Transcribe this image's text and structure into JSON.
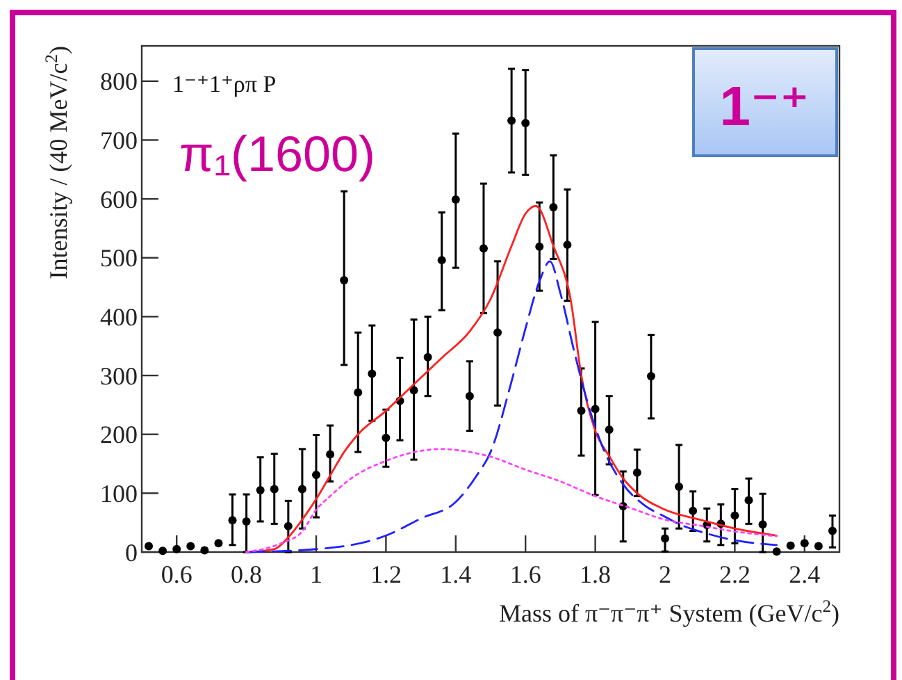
{
  "chart_data": {
    "type": "scatter",
    "xlabel": "Mass of π⁻π⁻π⁺ System (GeV/c$^{2}$)",
    "ylabel": "Intensity / (40 MeV/c$^{2}$)",
    "annotations": [
      "1⁻⁺1⁺ρπ P",
      "π₁(1600)",
      "1⁻⁺"
    ],
    "xlim": [
      0.5,
      2.5
    ],
    "xticks": [
      0.6,
      0.8,
      1,
      1.2,
      1.4,
      1.6,
      1.8,
      2,
      2.2,
      2.4
    ],
    "ylim": [
      0,
      860
    ],
    "yticks": [
      0,
      100,
      200,
      300,
      400,
      500,
      600,
      700,
      800
    ],
    "grid": false,
    "series": [
      {
        "color": "#000000",
        "marker": "circle",
        "x": [
          0.52,
          0.56,
          0.6,
          0.64,
          0.68,
          0.72,
          0.76,
          0.8,
          0.84,
          0.88,
          0.92,
          0.96,
          1.0,
          1.04,
          1.08,
          1.12,
          1.16,
          1.2,
          1.24,
          1.28,
          1.32,
          1.36,
          1.4,
          1.44,
          1.48,
          1.52,
          1.56,
          1.6,
          1.64,
          1.68,
          1.72,
          1.76,
          1.8,
          1.84,
          1.88,
          1.92,
          1.96,
          2.0,
          2.04,
          2.08,
          2.12,
          2.16,
          2.2,
          2.24,
          2.28,
          2.32,
          2.36,
          2.4,
          2.44,
          2.48
        ],
        "values": [
          10,
          2,
          5,
          10,
          3,
          15,
          54,
          52,
          105,
          107,
          44,
          107,
          131,
          166,
          462,
          271,
          303,
          194,
          257,
          275,
          331,
          496,
          599,
          265,
          516,
          373,
          733,
          729,
          519,
          586,
          522,
          240,
          243,
          208,
          78,
          135,
          299,
          23,
          111,
          70,
          46,
          48,
          62,
          88,
          47,
          1,
          11,
          15,
          10,
          36
        ],
        "errors": [
          null,
          null,
          null,
          null,
          null,
          null,
          [
            12,
            98
          ],
          [
            0,
            98
          ],
          [
            52,
            161
          ],
          [
            48,
            167
          ],
          [
            0,
            87
          ],
          [
            40,
            175
          ],
          [
            59,
            199
          ],
          [
            120,
            215
          ],
          [
            318,
            613
          ],
          [
            170,
            373
          ],
          [
            223,
            385
          ],
          [
            145,
            242
          ],
          [
            190,
            330
          ],
          [
            157,
            395
          ],
          [
            265,
            400
          ],
          [
            411,
            577
          ],
          [
            483,
            711
          ],
          [
            206,
            324
          ],
          [
            406,
            626
          ],
          [
            249,
            494
          ],
          [
            645,
            821
          ],
          [
            641,
            819
          ],
          [
            444,
            594
          ],
          [
            498,
            674
          ],
          [
            427,
            616
          ],
          [
            164,
            312
          ],
          [
            97,
            391
          ],
          [
            149,
            265
          ],
          [
            18,
            137
          ],
          [
            95,
            174
          ],
          [
            227,
            369
          ],
          [
            1,
            40
          ],
          [
            40,
            182
          ],
          [
            36,
            103
          ],
          [
            18,
            74
          ],
          [
            12,
            81
          ],
          [
            15,
            107
          ],
          [
            48,
            125
          ],
          [
            0,
            99
          ],
          null,
          null,
          null,
          null,
          [
            8,
            62
          ]
        ]
      },
      {
        "type": "line",
        "color": "#ff2020",
        "line_style": "solid",
        "x": [
          0.8,
          0.88,
          0.92,
          0.96,
          1.0,
          1.04,
          1.08,
          1.12,
          1.2,
          1.28,
          1.36,
          1.44,
          1.5,
          1.56,
          1.6,
          1.63,
          1.68,
          1.73,
          1.76,
          1.8,
          1.84,
          1.88,
          1.92,
          2.0,
          2.1,
          2.2,
          2.32
        ],
        "values": [
          0,
          5,
          25,
          55,
          90,
          130,
          170,
          200,
          240,
          285,
          330,
          375,
          430,
          520,
          575,
          588,
          520,
          427,
          300,
          206,
          163,
          125,
          100,
          72,
          55,
          40,
          28
        ]
      },
      {
        "type": "line",
        "color": "#2020ff",
        "line_style": "dashed",
        "x": [
          0.8,
          1.0,
          1.2,
          1.3,
          1.4,
          1.46,
          1.5,
          1.56,
          1.6,
          1.64,
          1.67,
          1.7,
          1.74,
          1.78,
          1.82,
          1.88,
          1.94,
          2.0,
          2.05,
          2.1,
          2.2,
          2.32
        ],
        "values": [
          0,
          5,
          28,
          57,
          85,
          130,
          170,
          290,
          380,
          460,
          494,
          440,
          340,
          250,
          180,
          115,
          80,
          60,
          45,
          35,
          20,
          12
        ]
      },
      {
        "type": "line",
        "color": "#ff40ff",
        "line_style": "dotted",
        "x": [
          0.8,
          0.9,
          0.96,
          1.0,
          1.04,
          1.1,
          1.2,
          1.3,
          1.36,
          1.44,
          1.5,
          1.6,
          1.7,
          1.8,
          1.9,
          2.0,
          2.1,
          2.2,
          2.32
        ],
        "values": [
          0,
          15,
          35,
          72,
          95,
          125,
          155,
          172,
          175,
          170,
          162,
          140,
          120,
          95,
          75,
          55,
          45,
          35,
          27
        ]
      }
    ]
  }
}
